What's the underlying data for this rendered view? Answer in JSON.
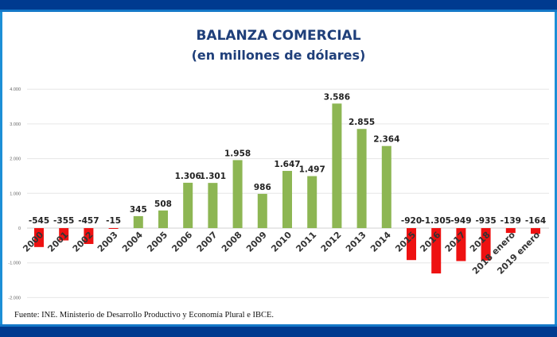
{
  "chart_data": {
    "type": "bar",
    "title": "BALANZA COMERCIAL",
    "subtitle": "(en millones de dólares)",
    "xlabel": "",
    "ylabel": "",
    "ylim": [
      -2000,
      4000
    ],
    "yticks": [
      4000,
      3000,
      2000,
      1000,
      0,
      -1000,
      -2000
    ],
    "ytick_labels": [
      "4.000",
      "3.000",
      "2.000",
      "1.000",
      "0",
      "-1.000",
      "-2.000"
    ],
    "grid": true,
    "categories": [
      "2000",
      "2001",
      "2002",
      "2003",
      "2004",
      "2005",
      "2006",
      "2007",
      "2008",
      "2009",
      "2010",
      "2011",
      "2012",
      "2013",
      "2014",
      "2015",
      "2016",
      "2017",
      "2018",
      "2018 enero",
      "2019 enero"
    ],
    "values": [
      -545,
      -355,
      -457,
      -15,
      345,
      508,
      1306,
      1301,
      1958,
      986,
      1647,
      1497,
      3586,
      2855,
      2364,
      -920,
      -1305,
      -949,
      -935,
      -139,
      -164
    ],
    "value_labels": [
      "-545",
      "-355",
      "-457",
      "-15",
      "345",
      "508",
      "1.306",
      "1.301",
      "1.958",
      "986",
      "1.647",
      "1.497",
      "3.586",
      "2.855",
      "2.364",
      "-920",
      "-1.305",
      "-949",
      "-935",
      "-139",
      "-164"
    ],
    "colors": {
      "positive": "#8db653",
      "negative": "#ee1111"
    }
  },
  "source": "Fuente: INE. Ministerio de Desarrollo Productivo y Economía Plural e IBCE."
}
